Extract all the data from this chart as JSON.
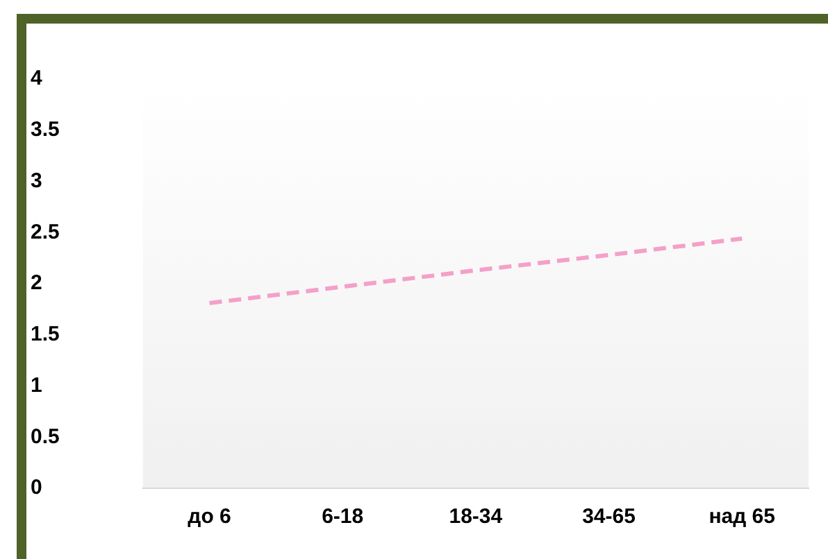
{
  "chart_data": {
    "type": "line",
    "categories": [
      "до 6",
      "6-18",
      "18-34",
      "34-65",
      "над 65"
    ],
    "series": [
      {
        "color": "#f4a0c8",
        "values": [
          1.81,
          1.97,
          2.13,
          2.28,
          2.44
        ]
      }
    ],
    "ylim": [
      0,
      4
    ],
    "yticks": [
      0,
      0.5,
      1,
      1.5,
      2,
      2.5,
      3,
      3.5,
      4
    ],
    "grid": false,
    "legend": false,
    "marker": "none",
    "line_style": "dashed"
  }
}
